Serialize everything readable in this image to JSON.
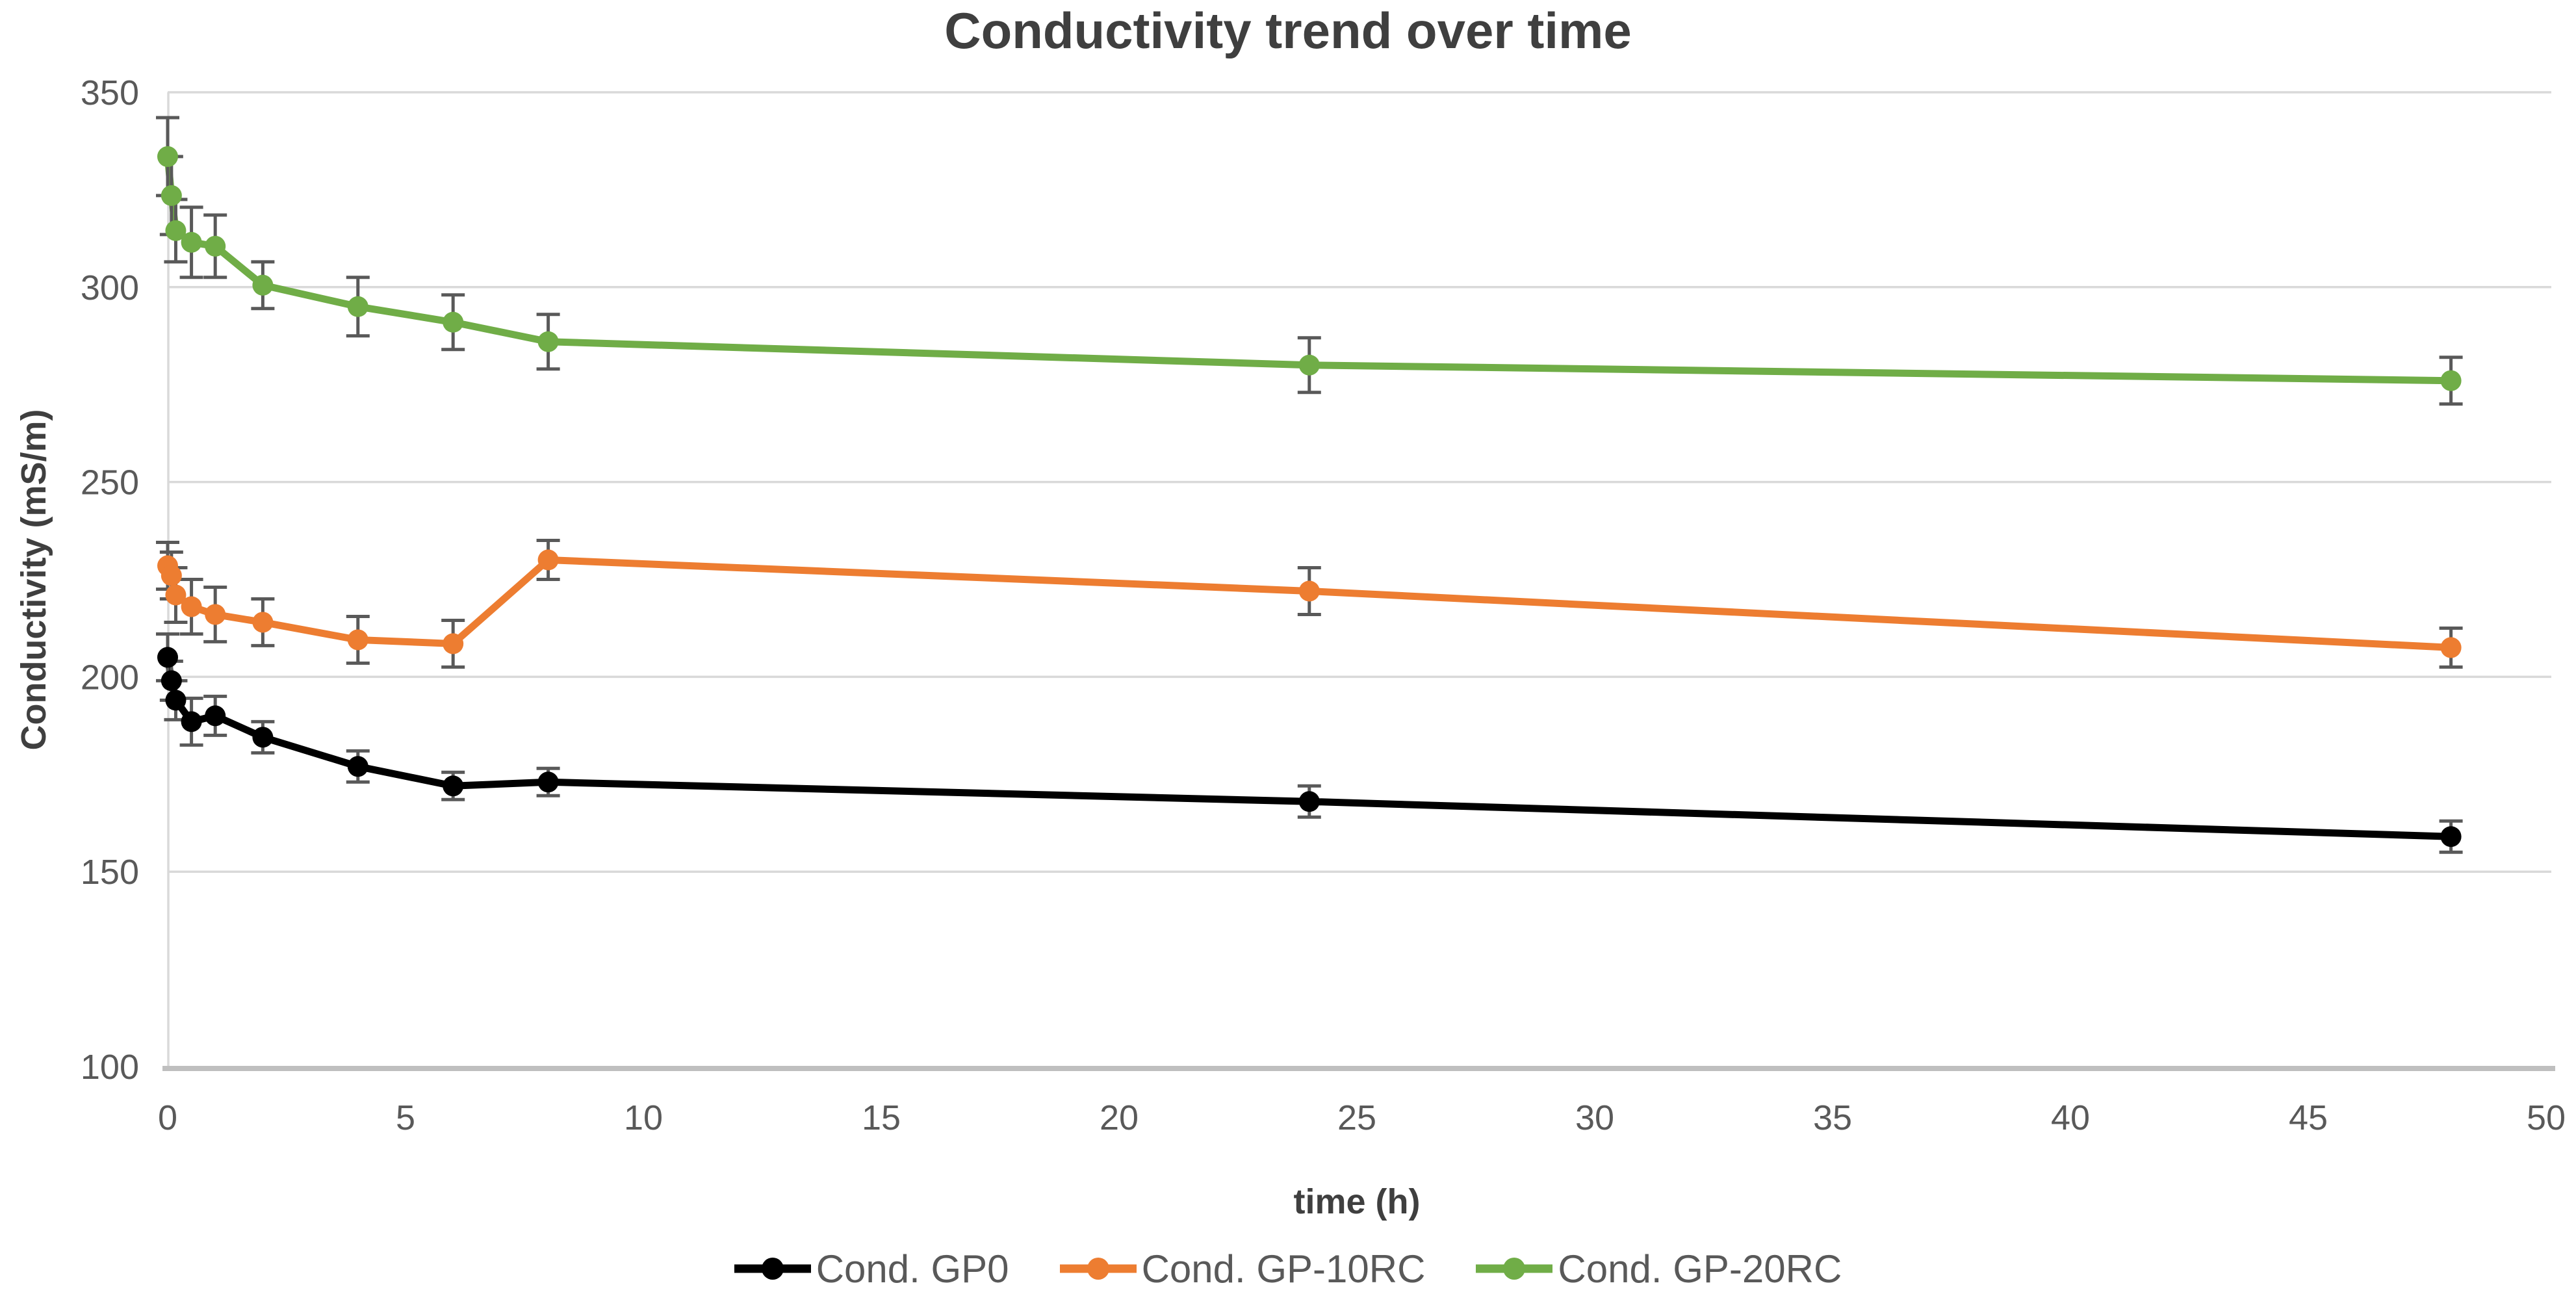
{
  "chart_data": {
    "type": "line",
    "title": "Conductivity trend over time",
    "xlabel": "time (h)",
    "ylabel": "Conductivity (mS/m)",
    "x": [
      0,
      0.08,
      0.17,
      0.5,
      1,
      2,
      4,
      6,
      8,
      24,
      48
    ],
    "series": [
      {
        "name": "Cond. GP0",
        "color": "#000000",
        "values": [
          205,
          199,
          194,
          188.5,
          190,
          184.5,
          177,
          172,
          173,
          168,
          159
        ],
        "errors": [
          6,
          5,
          5,
          6,
          5,
          4,
          4,
          3.5,
          3.5,
          4,
          4
        ]
      },
      {
        "name": "Cond. GP-10RC",
        "color": "#ED7D31",
        "values": [
          228.5,
          226,
          221,
          218,
          216,
          214,
          209.5,
          208.5,
          230,
          222,
          207.5
        ],
        "errors": [
          6,
          6,
          7,
          7,
          7,
          6,
          6,
          6,
          5,
          6,
          5
        ]
      },
      {
        "name": "Cond. GP-20RC",
        "color": "#70AD47",
        "values": [
          333.5,
          323.5,
          314.5,
          311.5,
          310.5,
          300.5,
          295,
          291,
          286,
          280,
          276
        ],
        "errors": [
          10,
          10,
          8,
          9,
          8,
          6,
          7.5,
          7,
          7,
          7,
          6
        ]
      }
    ],
    "xlim": [
      0,
      50
    ],
    "ylim": [
      100,
      350
    ],
    "x_ticks": [
      0,
      5,
      10,
      15,
      20,
      25,
      30,
      35,
      40,
      45,
      50
    ],
    "y_ticks": [
      100,
      150,
      200,
      250,
      300,
      350
    ],
    "grid": "horizontal-only",
    "legend_position": "bottom",
    "error_bars": true,
    "colors": {
      "gridline": "#D9D9D9",
      "axis_line": "#BFBFBF",
      "tick_text": "#595959",
      "title_text": "#3F3F3F",
      "error_bar": "#595959"
    }
  }
}
